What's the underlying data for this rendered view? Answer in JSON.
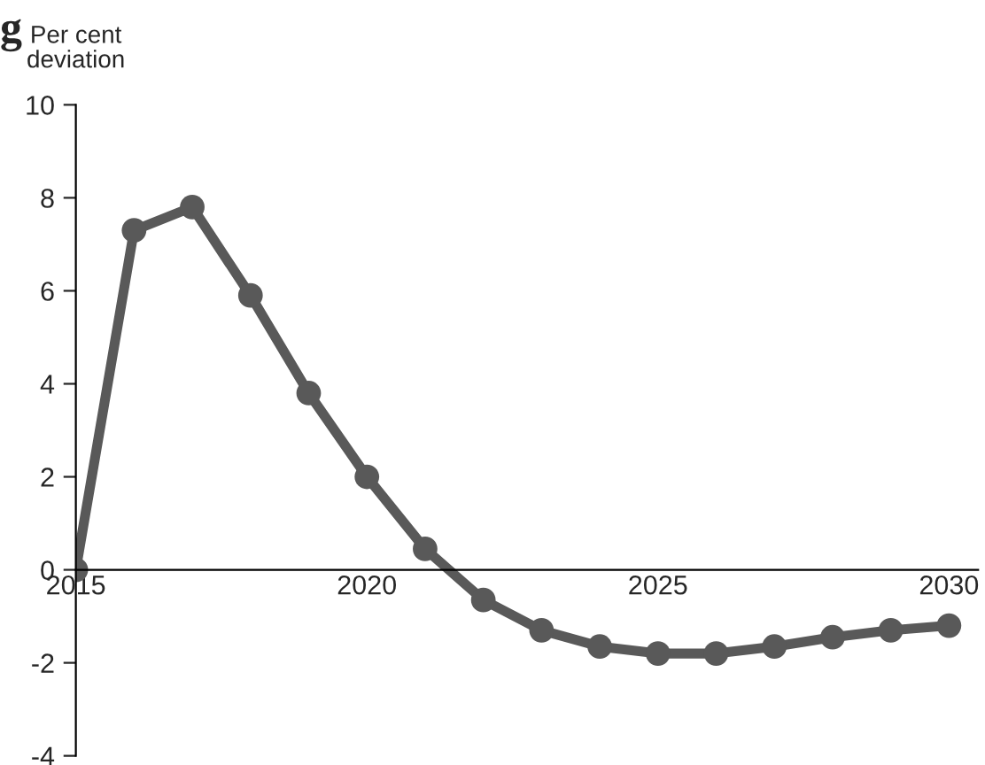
{
  "chart_data": {
    "type": "line",
    "title": "g",
    "ylabel": "Per cent\ndeviation",
    "x": [
      2015,
      2016,
      2017,
      2018,
      2019,
      2020,
      2021,
      2022,
      2023,
      2024,
      2025,
      2026,
      2027,
      2028,
      2029,
      2030
    ],
    "series": [
      {
        "color": "#595959",
        "values": [
          0,
          7.3,
          7.8,
          5.9,
          3.8,
          2.0,
          0.45,
          -0.65,
          -1.3,
          -1.65,
          -1.8,
          -1.8,
          -1.65,
          -1.45,
          -1.3,
          -1.2
        ]
      }
    ],
    "xlim": [
      2015,
      2030.5
    ],
    "xticks": [
      2015,
      2020,
      2025,
      2030
    ],
    "ylim": [
      -4,
      10
    ],
    "yticks": [
      -4,
      -2,
      0,
      2,
      4,
      6,
      8,
      10
    ],
    "grid": false,
    "legend": false,
    "marker": "circle",
    "line_style": "solid"
  }
}
